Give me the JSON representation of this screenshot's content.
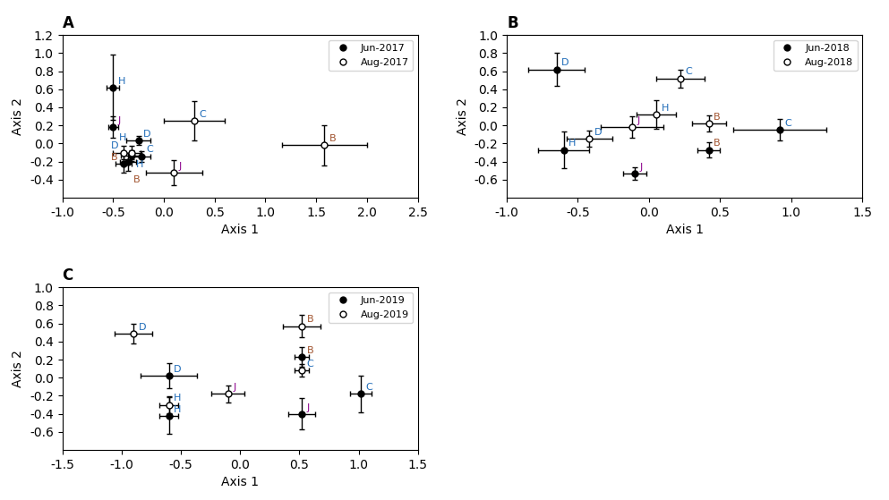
{
  "chart_data": [
    {
      "type": "scatter",
      "title": "A",
      "x_label": "Axis 1",
      "y_label": "Axis 2",
      "xlim": [
        -1.0,
        2.5
      ],
      "ylim": [
        -0.6,
        1.2
      ],
      "xticks": [
        -1.0,
        -0.5,
        0.0,
        0.5,
        1.0,
        1.5,
        2.0,
        2.5
      ],
      "yticks": [
        -0.4,
        -0.2,
        0.0,
        0.2,
        0.4,
        0.6,
        0.8,
        1.0,
        1.2
      ],
      "legend": "upper right",
      "series": [
        {
          "name": "Jun-2017",
          "color": "#000000",
          "marker": "circle",
          "x": [
            -0.5,
            -0.5,
            -0.25,
            -0.32,
            -0.22,
            -0.35,
            -0.4
          ],
          "values": [
            0.62,
            0.18,
            0.03,
            -0.13,
            -0.14,
            -0.2,
            -0.22
          ],
          "xerr": [
            0.06,
            0.05,
            0.12,
            0.1,
            0.09,
            0.08,
            0.08
          ],
          "yerr": [
            0.36,
            0.12,
            0.05,
            0.06,
            0.06,
            0.1,
            0.1
          ],
          "point_labels": [
            "H",
            "J",
            "D",
            "H",
            "C",
            "B",
            "B"
          ],
          "point_label_colors": [
            "#1E6BB8",
            "#8B008B",
            "#1E6BB8",
            "#1E6BB8",
            "#1E6BB8",
            "#A0522D",
            "#A0522D"
          ]
        },
        {
          "name": "Aug-2017",
          "color": "#000000",
          "marker": "open_circle",
          "x": [
            0.3,
            1.58,
            0.1,
            -0.4,
            -0.32
          ],
          "values": [
            0.25,
            -0.02,
            -0.32,
            -0.1,
            -0.1
          ],
          "xerr": [
            0.3,
            0.42,
            0.28,
            0.1,
            0.09
          ],
          "yerr": [
            0.22,
            0.22,
            0.14,
            0.07,
            0.07
          ],
          "point_labels": [
            "C",
            "B",
            "J",
            "D",
            "H"
          ],
          "point_label_colors": [
            "#1E6BB8",
            "#A0522D",
            "#8B008B",
            "#1E6BB8",
            "#1E6BB8"
          ]
        }
      ]
    },
    {
      "type": "scatter",
      "title": "B",
      "x_label": "Axis 1",
      "y_label": "Axis 2",
      "xlim": [
        -1.0,
        1.5
      ],
      "ylim": [
        -0.8,
        1.0
      ],
      "xticks": [
        -1.0,
        -0.5,
        0.0,
        0.5,
        1.0,
        1.5
      ],
      "yticks": [
        -0.6,
        -0.4,
        -0.2,
        0.0,
        0.2,
        0.4,
        0.6,
        0.8,
        1.0
      ],
      "legend": "upper right",
      "series": [
        {
          "name": "Jun-2018",
          "color": "#000000",
          "marker": "circle",
          "x": [
            -0.65,
            -0.6,
            0.42,
            0.92,
            -0.1
          ],
          "values": [
            0.62,
            -0.27,
            -0.27,
            -0.05,
            -0.53
          ],
          "xerr": [
            0.2,
            0.18,
            0.08,
            0.33,
            0.08
          ],
          "yerr": [
            0.18,
            0.2,
            0.08,
            0.12,
            0.07
          ],
          "point_labels": [
            "D",
            "H",
            "B",
            "C",
            "J"
          ],
          "point_label_colors": [
            "#1E6BB8",
            "#1E6BB8",
            "#A0522D",
            "#1E6BB8",
            "#8B008B"
          ]
        },
        {
          "name": "Aug-2018",
          "color": "#000000",
          "marker": "open_circle",
          "x": [
            0.22,
            -0.12,
            0.05,
            -0.42,
            0.42
          ],
          "values": [
            0.52,
            -0.02,
            0.12,
            -0.15,
            0.02
          ],
          "xerr": [
            0.17,
            0.22,
            0.14,
            0.16,
            0.12
          ],
          "yerr": [
            0.1,
            0.12,
            0.16,
            0.09,
            0.09
          ],
          "point_labels": [
            "C",
            "J",
            "H",
            "D",
            "B"
          ],
          "point_label_colors": [
            "#1E6BB8",
            "#8B008B",
            "#1E6BB8",
            "#1E6BB8",
            "#A0522D"
          ]
        }
      ]
    },
    {
      "type": "scatter",
      "title": "C",
      "x_label": "Axis 1",
      "y_label": "Axis 2",
      "xlim": [
        -1.5,
        1.5
      ],
      "ylim": [
        -0.8,
        1.0
      ],
      "xticks": [
        -1.5,
        -1.0,
        -0.5,
        0.0,
        0.5,
        1.0,
        1.5
      ],
      "yticks": [
        -0.6,
        -0.4,
        -0.2,
        0.0,
        0.2,
        0.4,
        0.6,
        0.8,
        1.0
      ],
      "legend": "upper right",
      "series": [
        {
          "name": "Jun-2019",
          "color": "#000000",
          "marker": "circle",
          "x": [
            -0.6,
            -0.6,
            0.52,
            1.02,
            0.52
          ],
          "values": [
            0.02,
            -0.42,
            0.23,
            -0.18,
            -0.4
          ],
          "xerr": [
            0.24,
            0.08,
            0.06,
            0.09,
            0.11
          ],
          "yerr": [
            0.14,
            0.2,
            0.11,
            0.2,
            0.17
          ],
          "point_labels": [
            "D",
            "H",
            "B",
            "C",
            "J"
          ],
          "point_label_colors": [
            "#1E6BB8",
            "#1E6BB8",
            "#A0522D",
            "#1E6BB8",
            "#8B008B"
          ]
        },
        {
          "name": "Aug-2019",
          "color": "#000000",
          "marker": "open_circle",
          "x": [
            -0.9,
            -0.6,
            0.52,
            0.52,
            -0.1
          ],
          "values": [
            0.49,
            -0.3,
            0.57,
            0.08,
            -0.18
          ],
          "xerr": [
            0.16,
            0.08,
            0.16,
            0.06,
            0.14
          ],
          "yerr": [
            0.11,
            0.09,
            0.12,
            0.07,
            0.09
          ],
          "point_labels": [
            "D",
            "H",
            "B",
            "C",
            "J"
          ],
          "point_label_colors": [
            "#1E6BB8",
            "#1E6BB8",
            "#A0522D",
            "#1E6BB8",
            "#8B008B"
          ]
        }
      ]
    }
  ]
}
